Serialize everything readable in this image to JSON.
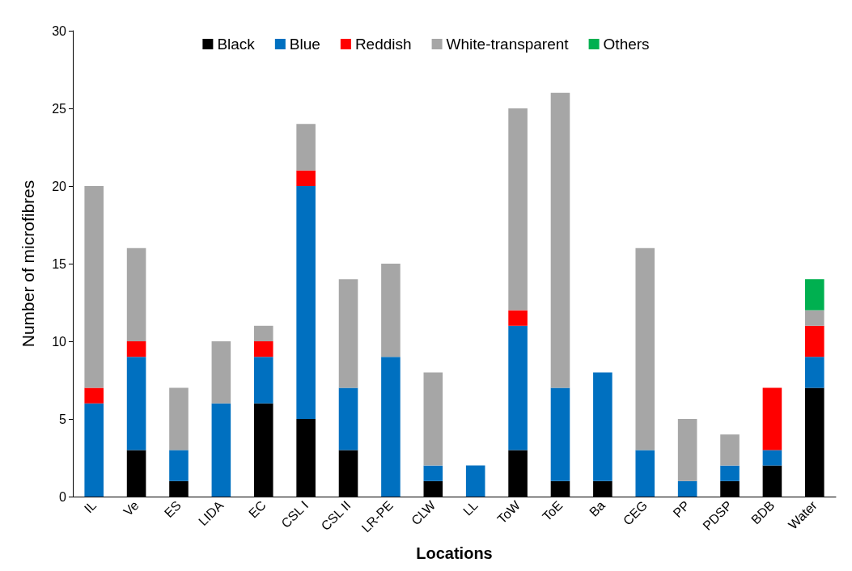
{
  "chart_data": {
    "type": "bar",
    "stacked": true,
    "xlabel": "Locations",
    "ylabel": "Number of microfibres",
    "categories": [
      "IL",
      "Ve",
      "ES",
      "LIDA",
      "EC",
      "CSL I",
      "CSL II",
      "LR-PE",
      "CLW",
      "LL",
      "ToW",
      "ToE",
      "Ba",
      "CEG",
      "PP",
      "PDSP",
      "BDB",
      "Water"
    ],
    "series": [
      {
        "name": "Black",
        "color": "#000000",
        "values": [
          0,
          3,
          1,
          0,
          6,
          5,
          3,
          0,
          1,
          0,
          3,
          1,
          1,
          0,
          0,
          1,
          2,
          7
        ]
      },
      {
        "name": "Blue",
        "color": "#0070c0",
        "values": [
          6,
          6,
          2,
          6,
          3,
          15,
          4,
          9,
          1,
          2,
          8,
          6,
          7,
          3,
          1,
          1,
          1,
          2
        ]
      },
      {
        "name": "Reddish",
        "color": "#ff0000",
        "values": [
          1,
          1,
          0,
          0,
          1,
          1,
          0,
          0,
          0,
          0,
          1,
          0,
          0,
          0,
          0,
          0,
          4,
          2
        ]
      },
      {
        "name": "White-transparent",
        "color": "#a6a6a6",
        "values": [
          13,
          6,
          4,
          4,
          1,
          3,
          7,
          6,
          6,
          0,
          13,
          19,
          0,
          13,
          4,
          2,
          0,
          1
        ]
      },
      {
        "name": "Others",
        "color": "#00b050",
        "values": [
          0,
          0,
          0,
          0,
          0,
          0,
          0,
          0,
          0,
          0,
          0,
          0,
          0,
          0,
          0,
          0,
          0,
          2
        ]
      }
    ],
    "ylim": [
      0,
      30
    ],
    "yticks": [
      0,
      5,
      10,
      15,
      20,
      25,
      30
    ],
    "grid": false,
    "legend": "top"
  }
}
